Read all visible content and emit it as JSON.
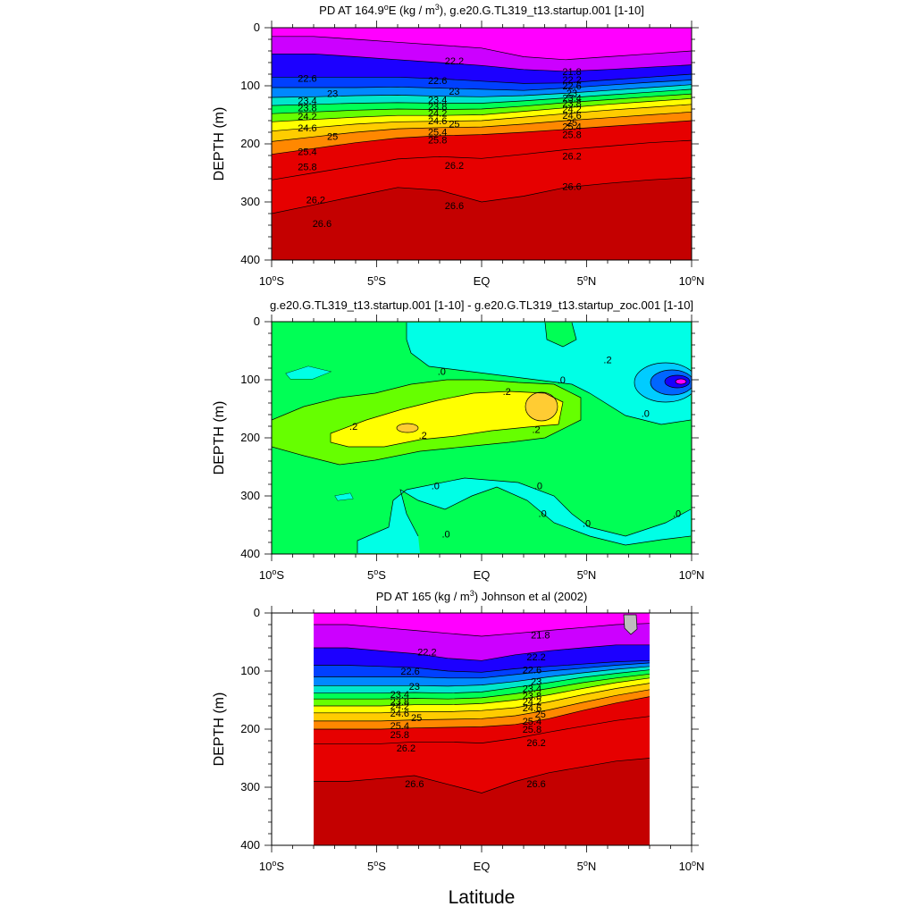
{
  "chart_data": [
    {
      "type": "contour",
      "title_parts": [
        "PD AT 164.9",
        "o",
        "E (kg / m",
        "3",
        "), g.e20.G.TL319_t13.startup.001 [1-10]"
      ],
      "ylabel": "DEPTH (m)",
      "ylim": [
        0,
        400
      ],
      "yticks": [
        "0",
        "100",
        "200",
        "300",
        "400"
      ],
      "xlim": [
        -10,
        10
      ],
      "xticks": [
        {
          "value": -10,
          "num": "10",
          "sup": "o",
          "hem": "S"
        },
        {
          "value": -5,
          "num": "5",
          "sup": "o",
          "hem": "S"
        },
        {
          "value": 0,
          "num": "EQ",
          "sup": "",
          "hem": ""
        },
        {
          "value": 5,
          "num": "5",
          "sup": "o",
          "hem": "N"
        },
        {
          "value": 10,
          "num": "10",
          "sup": "o",
          "hem": "N"
        }
      ],
      "levels": [
        21.8,
        22.2,
        22.6,
        23,
        23.4,
        23.8,
        24.2,
        24.6,
        25,
        25.4,
        25.8,
        26.2,
        26.6
      ],
      "data_extent": [
        -10,
        10
      ],
      "isopycnals": [
        {
          "sigma": 21.8,
          "depths": [
            15,
            15,
            20,
            25,
            30,
            35,
            50,
            55,
            50,
            45,
            40
          ]
        },
        {
          "sigma": 22.2,
          "depths": [
            45,
            45,
            50,
            55,
            60,
            65,
            72,
            75,
            72,
            68,
            64
          ]
        },
        {
          "sigma": 22.6,
          "depths": [
            85,
            85,
            85,
            85,
            88,
            92,
            96,
            95,
            90,
            85,
            80
          ]
        },
        {
          "sigma": 23,
          "depths": [
            103,
            103,
            103,
            102,
            104,
            106,
            108,
            104,
            99,
            94,
            90
          ]
        },
        {
          "sigma": 23.4,
          "depths": [
            120,
            119,
            117,
            116,
            118,
            119,
            117,
            113,
            108,
            103,
            98
          ]
        },
        {
          "sigma": 23.8,
          "depths": [
            134,
            132,
            130,
            129,
            130,
            130,
            126,
            121,
            116,
            111,
            106
          ]
        },
        {
          "sigma": 24.2,
          "depths": [
            148,
            145,
            142,
            140,
            141,
            140,
            135,
            129,
            124,
            119,
            114
          ]
        },
        {
          "sigma": 24.6,
          "depths": [
            162,
            158,
            154,
            151,
            151,
            150,
            144,
            138,
            132,
            127,
            122
          ]
        },
        {
          "sigma": 25,
          "depths": [
            178,
            172,
            166,
            162,
            161,
            160,
            154,
            148,
            142,
            137,
            132
          ]
        },
        {
          "sigma": 25.4,
          "depths": [
            196,
            188,
            180,
            174,
            172,
            171,
            166,
            160,
            155,
            150,
            145
          ]
        },
        {
          "sigma": 25.8,
          "depths": [
            218,
            208,
            198,
            190,
            186,
            184,
            180,
            175,
            170,
            165,
            160
          ]
        },
        {
          "sigma": 26.2,
          "depths": [
            262,
            250,
            238,
            226,
            222,
            225,
            218,
            210,
            204,
            198,
            194
          ]
        },
        {
          "sigma": 26.6,
          "depths": [
            320,
            305,
            290,
            275,
            280,
            300,
            290,
            275,
            268,
            262,
            258
          ]
        }
      ],
      "contour_labels": [
        {
          "text": "22.2",
          "x": -1.3,
          "y": 57
        },
        {
          "text": "21.8",
          "x": 4.3,
          "y": 75
        },
        {
          "text": "22.6",
          "x": -8.3,
          "y": 87
        },
        {
          "text": "22.6",
          "x": -2.1,
          "y": 91
        },
        {
          "text": "22.2",
          "x": 4.3,
          "y": 89
        },
        {
          "text": "22.6",
          "x": 4.3,
          "y": 100
        },
        {
          "text": "23",
          "x": -7.1,
          "y": 113
        },
        {
          "text": "23",
          "x": -1.3,
          "y": 109
        },
        {
          "text": "23.4",
          "x": -8.3,
          "y": 125
        },
        {
          "text": "23.4",
          "x": -2.1,
          "y": 124
        },
        {
          "text": "23",
          "x": 4.3,
          "y": 112
        },
        {
          "text": "23.4",
          "x": 4.3,
          "y": 121
        },
        {
          "text": "23.8",
          "x": -8.3,
          "y": 138
        },
        {
          "text": "23.8",
          "x": -2.1,
          "y": 135
        },
        {
          "text": "23.8",
          "x": 4.3,
          "y": 130
        },
        {
          "text": "24.2",
          "x": -8.3,
          "y": 152
        },
        {
          "text": "24.2",
          "x": -2.1,
          "y": 147
        },
        {
          "text": "24.2",
          "x": 4.3,
          "y": 140
        },
        {
          "text": "24.6",
          "x": -8.3,
          "y": 172
        },
        {
          "text": "24.6",
          "x": -2.1,
          "y": 160
        },
        {
          "text": "25",
          "x": -1.3,
          "y": 165
        },
        {
          "text": "24.6",
          "x": 4.3,
          "y": 151
        },
        {
          "text": "25",
          "x": -7.1,
          "y": 187
        },
        {
          "text": "25",
          "x": 4.3,
          "y": 163
        },
        {
          "text": "25.4",
          "x": -2.1,
          "y": 179
        },
        {
          "text": "25.4",
          "x": 4.3,
          "y": 170
        },
        {
          "text": "25.8",
          "x": -2.1,
          "y": 193
        },
        {
          "text": "25.8",
          "x": 4.3,
          "y": 184
        },
        {
          "text": "25.4",
          "x": -8.3,
          "y": 213
        },
        {
          "text": "25.8",
          "x": -8.3,
          "y": 239
        },
        {
          "text": "26.2",
          "x": -1.3,
          "y": 237
        },
        {
          "text": "26.2",
          "x": 4.3,
          "y": 221
        },
        {
          "text": "26.6",
          "x": 4.3,
          "y": 273
        },
        {
          "text": "26.2",
          "x": -7.9,
          "y": 296
        },
        {
          "text": "26.6",
          "x": -1.3,
          "y": 306
        },
        {
          "text": "26.6",
          "x": -7.6,
          "y": 337
        }
      ]
    },
    {
      "type": "contour",
      "title_parts": [
        "g.e20.G.TL319_t13.startup.001 [1-10] - g.e20.G.TL319_t13.startup_zoc.001 [1-10]"
      ],
      "ylabel": "DEPTH (m)",
      "ylim": [
        0,
        400
      ],
      "yticks": [
        "0",
        "100",
        "200",
        "300",
        "400"
      ],
      "xlim": [
        -10,
        10
      ],
      "xticks": [
        {
          "value": -10,
          "num": "10",
          "sup": "o",
          "hem": "S"
        },
        {
          "value": -5,
          "num": "5",
          "sup": "o",
          "hem": "S"
        },
        {
          "value": 0,
          "num": "EQ",
          "sup": "",
          "hem": ""
        },
        {
          "value": 5,
          "num": "5",
          "sup": "o",
          "hem": "N"
        },
        {
          "value": 10,
          "num": "10",
          "sup": "o",
          "hem": "N"
        }
      ],
      "levels": [
        -0.8,
        -0.6,
        -0.4,
        -0.2,
        0,
        0.2,
        0.4,
        0.6
      ],
      "contour_labels": [
        {
          "text": ".0",
          "x": -1.9,
          "y": 85
        },
        {
          "text": ".0",
          "x": 3.8,
          "y": 100
        },
        {
          "text": ".2",
          "x": 6.0,
          "y": 65
        },
        {
          "text": ".2",
          "x": 1.2,
          "y": 120
        },
        {
          "text": ".0",
          "x": 7.8,
          "y": 158
        },
        {
          "text": ".2",
          "x": -6.1,
          "y": 180
        },
        {
          "text": ".2",
          "x": -2.8,
          "y": 195
        },
        {
          "text": ".2",
          "x": 2.6,
          "y": 185
        },
        {
          "text": ".0",
          "x": -2.2,
          "y": 282
        },
        {
          "text": ".0",
          "x": 2.7,
          "y": 282
        },
        {
          "text": ".0",
          "x": 2.9,
          "y": 330
        },
        {
          "text": ".0",
          "x": 5.0,
          "y": 347
        },
        {
          "text": ".0",
          "x": 9.3,
          "y": 330
        },
        {
          "text": ".0",
          "x": -1.7,
          "y": 365
        }
      ]
    },
    {
      "type": "contour",
      "title_parts": [
        "PD AT 165 (kg / m",
        "3",
        ") Johnson et al (2002)"
      ],
      "ylabel": "DEPTH (m)",
      "ylim": [
        0,
        400
      ],
      "yticks": [
        "0",
        "100",
        "200",
        "300",
        "400"
      ],
      "xlim": [
        -10,
        10
      ],
      "xticks": [
        {
          "value": -10,
          "num": "10",
          "sup": "o",
          "hem": "S"
        },
        {
          "value": -5,
          "num": "5",
          "sup": "o",
          "hem": "S"
        },
        {
          "value": 0,
          "num": "EQ",
          "sup": "",
          "hem": ""
        },
        {
          "value": 5,
          "num": "5",
          "sup": "o",
          "hem": "N"
        },
        {
          "value": 10,
          "num": "10",
          "sup": "o",
          "hem": "N"
        }
      ],
      "levels": [
        21.8,
        22.2,
        22.6,
        23,
        23.4,
        23.8,
        24.2,
        24.6,
        25,
        25.4,
        25.8,
        26.2,
        26.6
      ],
      "data_extent": [
        -8,
        8
      ],
      "isopycnals": [
        {
          "sigma": 21.8,
          "depths": [
            20,
            20,
            25,
            30,
            35,
            40,
            35,
            30,
            25,
            20,
            18
          ]
        },
        {
          "sigma": 22.2,
          "depths": [
            60,
            60,
            65,
            70,
            78,
            82,
            72,
            65,
            60,
            55,
            55
          ]
        },
        {
          "sigma": 22.6,
          "depths": [
            90,
            90,
            92,
            94,
            100,
            102,
            96,
            92,
            88,
            84,
            82
          ]
        },
        {
          "sigma": 23,
          "depths": [
            110,
            110,
            110,
            110,
            112,
            112,
            106,
            100,
            95,
            90,
            86
          ]
        },
        {
          "sigma": 23.4,
          "depths": [
            125,
            125,
            125,
            125,
            126,
            124,
            118,
            110,
            103,
            97,
            92
          ]
        },
        {
          "sigma": 23.8,
          "depths": [
            138,
            138,
            138,
            137,
            138,
            136,
            128,
            120,
            111,
            104,
            98
          ]
        },
        {
          "sigma": 24.2,
          "depths": [
            148,
            148,
            148,
            147,
            148,
            146,
            139,
            130,
            120,
            112,
            105
          ]
        },
        {
          "sigma": 24.6,
          "depths": [
            160,
            160,
            160,
            158,
            158,
            156,
            150,
            141,
            130,
            120,
            112
          ]
        },
        {
          "sigma": 25,
          "depths": [
            172,
            172,
            172,
            170,
            170,
            168,
            163,
            153,
            141,
            130,
            121
          ]
        },
        {
          "sigma": 25.4,
          "depths": [
            186,
            186,
            186,
            184,
            183,
            182,
            177,
            167,
            154,
            142,
            132
          ]
        },
        {
          "sigma": 25.8,
          "depths": [
            200,
            200,
            200,
            198,
            197,
            196,
            192,
            182,
            168,
            155,
            144
          ]
        },
        {
          "sigma": 26.2,
          "depths": [
            225,
            225,
            225,
            222,
            222,
            224,
            216,
            205,
            195,
            185,
            178
          ]
        },
        {
          "sigma": 26.6,
          "depths": [
            290,
            290,
            285,
            280,
            295,
            310,
            290,
            275,
            265,
            255,
            250
          ]
        }
      ],
      "contour_labels": [
        {
          "text": "21.8",
          "x": 2.8,
          "y": 38
        },
        {
          "text": "22.2",
          "x": -2.6,
          "y": 67
        },
        {
          "text": "22.2",
          "x": 2.6,
          "y": 75
        },
        {
          "text": "22.6",
          "x": -3.4,
          "y": 100
        },
        {
          "text": "22.6",
          "x": 2.4,
          "y": 98
        },
        {
          "text": "23",
          "x": -3.2,
          "y": 126
        },
        {
          "text": "23",
          "x": 2.6,
          "y": 118
        },
        {
          "text": "23.4",
          "x": -3.9,
          "y": 140
        },
        {
          "text": "23.4",
          "x": 2.4,
          "y": 130
        },
        {
          "text": "23.8",
          "x": -3.9,
          "y": 152
        },
        {
          "text": "23.8",
          "x": 2.4,
          "y": 142
        },
        {
          "text": "24.2",
          "x": -3.9,
          "y": 160
        },
        {
          "text": "24.2",
          "x": 2.4,
          "y": 152
        },
        {
          "text": "24.6",
          "x": -3.9,
          "y": 172
        },
        {
          "text": "24.6",
          "x": 2.4,
          "y": 163
        },
        {
          "text": "25",
          "x": -3.1,
          "y": 180
        },
        {
          "text": "25",
          "x": 2.8,
          "y": 174
        },
        {
          "text": "25.4",
          "x": -3.9,
          "y": 194
        },
        {
          "text": "25.4",
          "x": 2.4,
          "y": 186
        },
        {
          "text": "25.8",
          "x": -3.9,
          "y": 209
        },
        {
          "text": "25.8",
          "x": 2.4,
          "y": 200
        },
        {
          "text": "26.2",
          "x": -3.6,
          "y": 232
        },
        {
          "text": "26.2",
          "x": 2.6,
          "y": 223
        },
        {
          "text": "26.6",
          "x": -3.2,
          "y": 294
        },
        {
          "text": "26.6",
          "x": 2.6,
          "y": 294
        }
      ]
    }
  ],
  "shared_xlabel": "Latitude",
  "colors": {
    "sigma_fill": [
      "#ff00ff",
      "#cc00ff",
      "#7a0aff",
      "#1c00ff",
      "#0040ff",
      "#0088ff",
      "#00ccff",
      "#00e6cc",
      "#00ff55",
      "#66ff00",
      "#ccff00",
      "#ffff00",
      "#ffcc00",
      "#ff8800",
      "#ff4400",
      "#e60000",
      "#c40000"
    ],
    "diff_fill": [
      "#ff00ff",
      "#1500ff",
      "#0066ff",
      "#00ccff",
      "#00ffe6",
      "#00ff55",
      "#66ff00",
      "#ffff00",
      "#ffcc33"
    ],
    "missing": "#bdbdbd"
  }
}
